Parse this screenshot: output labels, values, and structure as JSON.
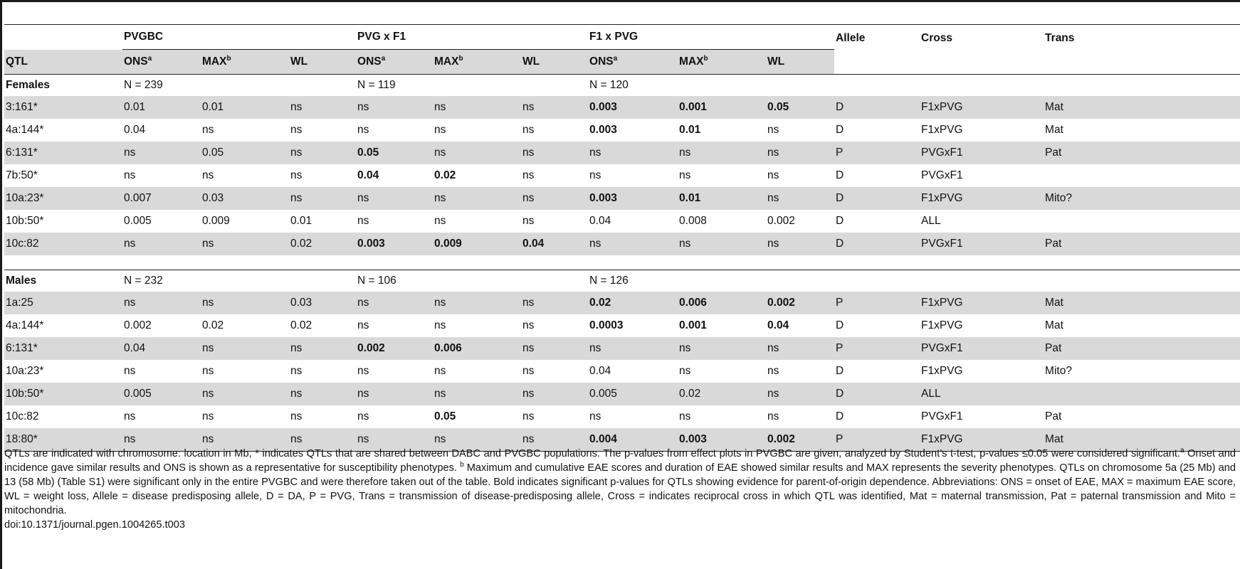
{
  "groups": {
    "pvgbc": "PVGBC",
    "pvgxf1": "PVG x F1",
    "f1xpvg": "F1 x PVG",
    "allele": "Allele",
    "cross": "Cross",
    "trans": "Trans"
  },
  "headers": {
    "qtl": "QTL",
    "ons": "ONS",
    "ons_sup": "a",
    "max": "MAX",
    "max_sup": "b",
    "wl": "WL"
  },
  "females": {
    "label": "Females",
    "n": [
      "N = 239",
      "N = 119",
      "N = 120"
    ],
    "rows": [
      {
        "qtl": "3:161*",
        "v": [
          "0.01",
          "0.01",
          "ns",
          "ns",
          "ns",
          "ns",
          "0.003",
          "0.001",
          "0.05"
        ],
        "bold": [
          6,
          7,
          8
        ],
        "allele": "D",
        "cross": "F1xPVG",
        "trans": "Mat"
      },
      {
        "qtl": "4a:144*",
        "v": [
          "0.04",
          "ns",
          "ns",
          "ns",
          "ns",
          "ns",
          "0.003",
          "0.01",
          "ns"
        ],
        "bold": [
          6,
          7
        ],
        "allele": "D",
        "cross": "F1xPVG",
        "trans": "Mat"
      },
      {
        "qtl": "6:131*",
        "v": [
          "ns",
          "0.05",
          "ns",
          "0.05",
          "ns",
          "ns",
          "ns",
          "ns",
          "ns"
        ],
        "bold": [
          3
        ],
        "allele": "P",
        "cross": "PVGxF1",
        "trans": "Pat"
      },
      {
        "qtl": "7b:50*",
        "v": [
          "ns",
          "ns",
          "ns",
          "0.04",
          "0.02",
          "ns",
          "ns",
          "ns",
          "ns"
        ],
        "bold": [
          3,
          4
        ],
        "allele": "D",
        "cross": "PVGxF1",
        "trans": ""
      },
      {
        "qtl": "10a:23*",
        "v": [
          "0.007",
          "0.03",
          "ns",
          "ns",
          "ns",
          "ns",
          "0.003",
          "0.01",
          "ns"
        ],
        "bold": [
          6,
          7
        ],
        "allele": "D",
        "cross": "F1xPVG",
        "trans": "Mito?"
      },
      {
        "qtl": "10b:50*",
        "v": [
          "0.005",
          "0.009",
          "0.01",
          "ns",
          "ns",
          "ns",
          "0.04",
          "0.008",
          "0.002"
        ],
        "bold": [],
        "allele": "D",
        "cross": "ALL",
        "trans": ""
      },
      {
        "qtl": "10c:82",
        "v": [
          "ns",
          "ns",
          "0.02",
          "0.003",
          "0.009",
          "0.04",
          "ns",
          "ns",
          "ns"
        ],
        "bold": [
          3,
          4,
          5
        ],
        "allele": "D",
        "cross": "PVGxF1",
        "trans": "Pat"
      }
    ]
  },
  "males": {
    "label": "Males",
    "n": [
      "N = 232",
      "N = 106",
      "N = 126"
    ],
    "rows": [
      {
        "qtl": "1a:25",
        "v": [
          "ns",
          "ns",
          "0.03",
          "ns",
          "ns",
          "ns",
          "0.02",
          "0.006",
          "0.002"
        ],
        "bold": [
          6,
          7,
          8
        ],
        "allele": "P",
        "cross": "F1xPVG",
        "trans": "Mat"
      },
      {
        "qtl": "4a:144*",
        "v": [
          "0.002",
          "0.02",
          "0.02",
          "ns",
          "ns",
          "ns",
          "0.0003",
          "0.001",
          "0.04"
        ],
        "bold": [
          6,
          7,
          8
        ],
        "allele": "D",
        "cross": "F1xPVG",
        "trans": "Mat"
      },
      {
        "qtl": "6:131*",
        "v": [
          "0.04",
          "ns",
          "ns",
          "0.002",
          "0.006",
          "ns",
          "ns",
          "ns",
          "ns"
        ],
        "bold": [
          3,
          4
        ],
        "allele": "P",
        "cross": "PVGxF1",
        "trans": "Pat"
      },
      {
        "qtl": "10a:23*",
        "v": [
          "ns",
          "ns",
          "ns",
          "ns",
          "ns",
          "ns",
          "0.04",
          "ns",
          "ns"
        ],
        "bold": [],
        "allele": "D",
        "cross": "F1xPVG",
        "trans": "Mito?"
      },
      {
        "qtl": "10b:50*",
        "v": [
          "0.005",
          "ns",
          "ns",
          "ns",
          "ns",
          "ns",
          "0.005",
          "0.02",
          "ns"
        ],
        "bold": [],
        "allele": "D",
        "cross": "ALL",
        "trans": ""
      },
      {
        "qtl": "10c:82",
        "v": [
          "ns",
          "ns",
          "ns",
          "ns",
          "0.05",
          "ns",
          "ns",
          "ns",
          "ns"
        ],
        "bold": [
          4
        ],
        "allele": "D",
        "cross": "PVGxF1",
        "trans": "Pat"
      },
      {
        "qtl": "18:80*",
        "v": [
          "ns",
          "ns",
          "ns",
          "ns",
          "ns",
          "ns",
          "0.004",
          "0.003",
          "0.002"
        ],
        "bold": [
          6,
          7,
          8
        ],
        "allele": "P",
        "cross": "F1xPVG",
        "trans": "Mat"
      }
    ]
  },
  "footnotes": {
    "main": "QTLs are indicated with chromosome: location in Mb, * indicates QTLs that are shared between DABC and PVGBC populations. The p-values from effect plots in PVGBC are given, analyzed by Student’s t-test, p-values ≤0.05 were considered significant.",
    "a_sup": "a",
    "a_text": " Onset and incidence gave similar results and ONS is shown as a representative for susceptibility phenotypes.",
    "b_sup": "b",
    "b_text": " Maximum and cumulative EAE scores and duration of EAE showed similar results and MAX represents the severity phenotypes. QTLs on chromosome 5a (25 Mb) and 13 (58 Mb) (Table S1) were significant only in the entire PVGBC and were therefore taken out of the table. Bold indicates significant p-values for QTLs showing evidence for parent-of-origin dependence. Abbreviations: ONS = onset of EAE, MAX = maximum EAE score, WL = weight loss, Allele = disease predisposing allele, D = DA, P = PVG, Trans = transmission of disease-predisposing allele, Cross = indicates reciprocal cross in which QTL was identified, Mat = maternal transmission, Pat = paternal transmission and Mito = mitochondria.",
    "doi": "doi:10.1371/journal.pgen.1004265.t003"
  }
}
